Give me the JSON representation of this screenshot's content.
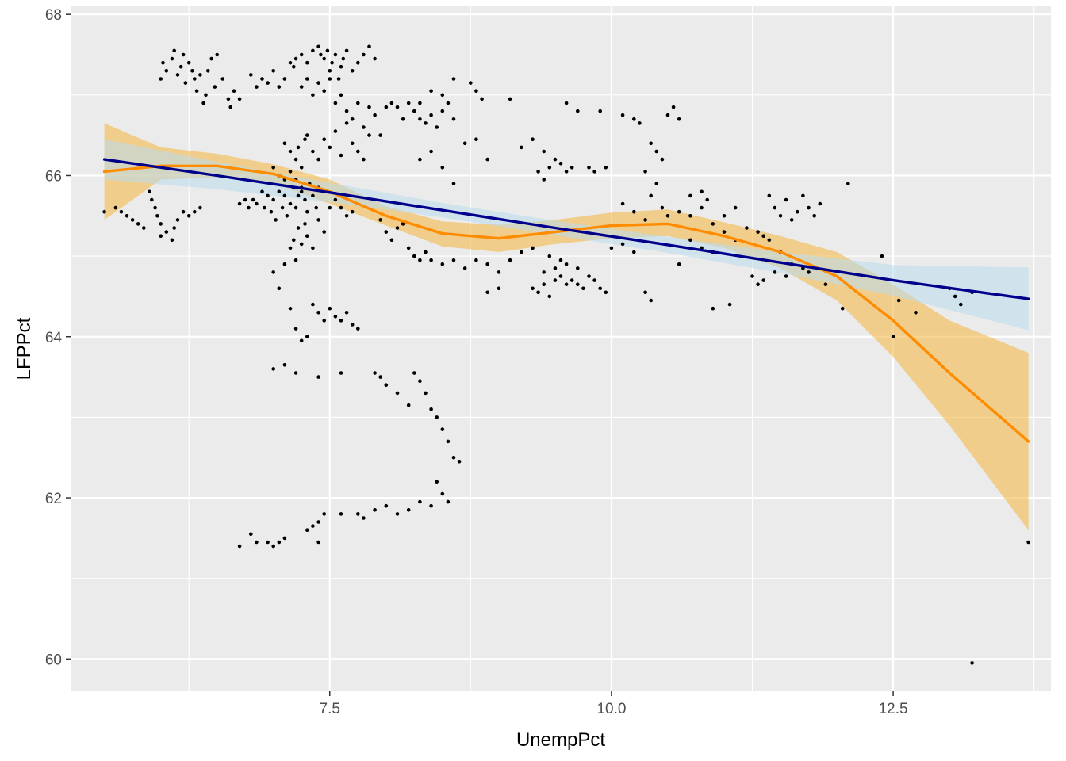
{
  "chart_data": {
    "type": "scatter",
    "title": "",
    "xlabel": "UnempPct",
    "ylabel": "LFPPct",
    "xlim": [
      5.2,
      13.9
    ],
    "ylim": [
      59.6,
      68.1
    ],
    "x_ticks": [
      7.5,
      10.0,
      12.5
    ],
    "x_tick_labels": [
      "7.5",
      "10.0",
      "12.5"
    ],
    "y_ticks": [
      60,
      62,
      64,
      66,
      68
    ],
    "y_tick_labels": [
      "60",
      "62",
      "64",
      "66",
      "68"
    ],
    "grid": true,
    "legend": "none",
    "colors": {
      "panel": "#ebebeb",
      "grid": "#ffffff",
      "points": "#000000",
      "loess_line": "#ff8c00",
      "loess_band": "#f4b94a",
      "linear_line": "#00008b",
      "linear_band": "#b9ddef"
    },
    "points": [
      [
        5.5,
        65.55
      ],
      [
        5.6,
        65.6
      ],
      [
        5.65,
        65.55
      ],
      [
        5.7,
        65.5
      ],
      [
        5.75,
        65.45
      ],
      [
        5.8,
        65.4
      ],
      [
        5.85,
        65.35
      ],
      [
        5.9,
        65.8
      ],
      [
        5.92,
        65.7
      ],
      [
        5.95,
        65.6
      ],
      [
        5.97,
        65.5
      ],
      [
        6.0,
        65.4
      ],
      [
        6.0,
        65.25
      ],
      [
        6.05,
        65.3
      ],
      [
        6.1,
        65.2
      ],
      [
        6.12,
        65.35
      ],
      [
        6.15,
        65.45
      ],
      [
        6.2,
        65.55
      ],
      [
        6.25,
        65.5
      ],
      [
        6.3,
        65.55
      ],
      [
        6.35,
        65.6
      ],
      [
        6.0,
        67.2
      ],
      [
        6.02,
        67.4
      ],
      [
        6.05,
        67.3
      ],
      [
        6.1,
        67.45
      ],
      [
        6.12,
        67.55
      ],
      [
        6.15,
        67.25
      ],
      [
        6.18,
        67.35
      ],
      [
        6.2,
        67.5
      ],
      [
        6.22,
        67.15
      ],
      [
        6.25,
        67.4
      ],
      [
        6.28,
        67.3
      ],
      [
        6.3,
        67.2
      ],
      [
        6.32,
        67.05
      ],
      [
        6.35,
        67.25
      ],
      [
        6.38,
        66.9
      ],
      [
        6.4,
        67.0
      ],
      [
        6.42,
        67.3
      ],
      [
        6.45,
        67.45
      ],
      [
        6.48,
        67.1
      ],
      [
        6.5,
        67.5
      ],
      [
        6.55,
        67.2
      ],
      [
        6.6,
        66.95
      ],
      [
        6.62,
        66.85
      ],
      [
        6.65,
        67.05
      ],
      [
        6.7,
        66.95
      ],
      [
        6.8,
        67.25
      ],
      [
        6.85,
        67.1
      ],
      [
        6.7,
        65.65
      ],
      [
        6.75,
        65.7
      ],
      [
        6.78,
        65.6
      ],
      [
        6.82,
        65.7
      ],
      [
        6.85,
        65.65
      ],
      [
        6.9,
        65.8
      ],
      [
        6.92,
        65.6
      ],
      [
        6.95,
        65.75
      ],
      [
        6.98,
        65.55
      ],
      [
        7.0,
        65.7
      ],
      [
        7.02,
        65.45
      ],
      [
        7.05,
        65.8
      ],
      [
        7.08,
        65.6
      ],
      [
        7.1,
        65.75
      ],
      [
        7.12,
        65.5
      ],
      [
        7.15,
        65.65
      ],
      [
        7.18,
        65.85
      ],
      [
        7.2,
        65.6
      ],
      [
        7.22,
        65.75
      ],
      [
        7.25,
        65.8
      ],
      [
        7.28,
        65.7
      ],
      [
        7.3,
        65.55
      ],
      [
        7.32,
        65.9
      ],
      [
        7.35,
        65.75
      ],
      [
        7.38,
        65.6
      ],
      [
        7.4,
        65.85
      ],
      [
        6.9,
        67.2
      ],
      [
        6.95,
        67.15
      ],
      [
        7.0,
        67.3
      ],
      [
        7.05,
        67.1
      ],
      [
        7.1,
        67.2
      ],
      [
        7.15,
        67.4
      ],
      [
        7.18,
        67.35
      ],
      [
        7.2,
        67.45
      ],
      [
        7.25,
        67.5
      ],
      [
        7.3,
        67.4
      ],
      [
        7.35,
        67.55
      ],
      [
        7.4,
        67.6
      ],
      [
        7.42,
        67.5
      ],
      [
        7.45,
        67.45
      ],
      [
        7.48,
        67.55
      ],
      [
        7.5,
        67.3
      ],
      [
        7.52,
        67.4
      ],
      [
        7.55,
        67.5
      ],
      [
        7.58,
        67.2
      ],
      [
        7.6,
        67.35
      ],
      [
        7.62,
        67.45
      ],
      [
        7.65,
        67.55
      ],
      [
        7.7,
        67.3
      ],
      [
        7.75,
        67.4
      ],
      [
        7.8,
        67.5
      ],
      [
        7.85,
        67.6
      ],
      [
        7.9,
        67.45
      ],
      [
        7.25,
        67.1
      ],
      [
        7.3,
        67.2
      ],
      [
        7.35,
        67.0
      ],
      [
        7.4,
        67.15
      ],
      [
        7.45,
        67.05
      ],
      [
        7.5,
        67.2
      ],
      [
        7.55,
        66.9
      ],
      [
        7.6,
        67.0
      ],
      [
        7.65,
        66.8
      ],
      [
        7.7,
        66.7
      ],
      [
        7.75,
        66.9
      ],
      [
        7.8,
        66.6
      ],
      [
        7.85,
        66.85
      ],
      [
        7.9,
        66.75
      ],
      [
        7.95,
        66.5
      ],
      [
        8.0,
        66.85
      ],
      [
        8.05,
        66.9
      ],
      [
        8.1,
        66.85
      ],
      [
        8.15,
        66.7
      ],
      [
        8.2,
        66.9
      ],
      [
        8.25,
        66.8
      ],
      [
        8.3,
        66.7
      ],
      [
        8.35,
        66.65
      ],
      [
        8.4,
        66.75
      ],
      [
        8.45,
        66.6
      ],
      [
        8.5,
        66.8
      ],
      [
        8.55,
        66.9
      ],
      [
        8.6,
        66.7
      ],
      [
        7.1,
        66.4
      ],
      [
        7.15,
        66.3
      ],
      [
        7.2,
        66.2
      ],
      [
        7.22,
        66.35
      ],
      [
        7.25,
        66.1
      ],
      [
        7.28,
        66.45
      ],
      [
        7.3,
        66.5
      ],
      [
        7.35,
        66.3
      ],
      [
        7.4,
        66.2
      ],
      [
        7.45,
        66.45
      ],
      [
        7.5,
        66.35
      ],
      [
        7.55,
        66.55
      ],
      [
        7.6,
        66.25
      ],
      [
        7.65,
        66.65
      ],
      [
        7.7,
        66.4
      ],
      [
        7.75,
        66.3
      ],
      [
        7.8,
        66.2
      ],
      [
        7.85,
        66.5
      ],
      [
        7.0,
        66.1
      ],
      [
        7.05,
        66.0
      ],
      [
        7.1,
        65.95
      ],
      [
        7.15,
        66.05
      ],
      [
        7.2,
        65.95
      ],
      [
        7.25,
        65.85
      ],
      [
        7.0,
        64.8
      ],
      [
        7.05,
        64.6
      ],
      [
        7.1,
        64.9
      ],
      [
        7.15,
        65.1
      ],
      [
        7.18,
        65.2
      ],
      [
        7.2,
        64.95
      ],
      [
        7.22,
        65.35
      ],
      [
        7.25,
        65.15
      ],
      [
        7.28,
        65.4
      ],
      [
        7.3,
        65.25
      ],
      [
        7.35,
        65.1
      ],
      [
        7.4,
        65.45
      ],
      [
        7.45,
        65.3
      ],
      [
        7.5,
        65.6
      ],
      [
        7.55,
        65.7
      ],
      [
        7.6,
        65.6
      ],
      [
        7.65,
        65.5
      ],
      [
        7.7,
        65.55
      ],
      [
        7.15,
        64.35
      ],
      [
        7.2,
        64.1
      ],
      [
        7.25,
        63.95
      ],
      [
        7.3,
        64.0
      ],
      [
        7.35,
        64.4
      ],
      [
        7.4,
        64.3
      ],
      [
        7.45,
        64.2
      ],
      [
        7.5,
        64.35
      ],
      [
        7.55,
        64.25
      ],
      [
        7.6,
        64.2
      ],
      [
        7.65,
        64.3
      ],
      [
        7.7,
        64.15
      ],
      [
        7.75,
        64.1
      ],
      [
        7.0,
        63.6
      ],
      [
        7.1,
        63.65
      ],
      [
        7.2,
        63.55
      ],
      [
        7.4,
        63.5
      ],
      [
        7.6,
        63.55
      ],
      [
        7.9,
        63.55
      ],
      [
        7.95,
        63.5
      ],
      [
        8.0,
        63.4
      ],
      [
        8.1,
        63.3
      ],
      [
        8.2,
        63.15
      ],
      [
        8.25,
        63.55
      ],
      [
        8.3,
        63.45
      ],
      [
        8.35,
        63.3
      ],
      [
        8.4,
        63.1
      ],
      [
        8.45,
        63.0
      ],
      [
        8.5,
        62.85
      ],
      [
        8.55,
        62.7
      ],
      [
        8.6,
        62.5
      ],
      [
        8.65,
        62.45
      ],
      [
        8.45,
        62.2
      ],
      [
        8.5,
        62.05
      ],
      [
        8.55,
        61.95
      ],
      [
        8.4,
        61.9
      ],
      [
        8.3,
        61.95
      ],
      [
        8.2,
        61.85
      ],
      [
        8.1,
        61.8
      ],
      [
        8.0,
        61.9
      ],
      [
        7.9,
        61.85
      ],
      [
        7.8,
        61.75
      ],
      [
        7.75,
        61.8
      ],
      [
        7.6,
        61.8
      ],
      [
        7.45,
        61.8
      ],
      [
        7.4,
        61.7
      ],
      [
        7.35,
        61.65
      ],
      [
        7.3,
        61.6
      ],
      [
        7.1,
        61.5
      ],
      [
        7.05,
        61.45
      ],
      [
        7.0,
        61.4
      ],
      [
        6.95,
        61.45
      ],
      [
        6.85,
        61.45
      ],
      [
        6.8,
        61.55
      ],
      [
        6.7,
        61.4
      ],
      [
        7.4,
        61.45
      ],
      [
        7.95,
        65.45
      ],
      [
        8.0,
        65.3
      ],
      [
        8.05,
        65.2
      ],
      [
        8.1,
        65.35
      ],
      [
        8.15,
        65.4
      ],
      [
        8.2,
        65.1
      ],
      [
        8.25,
        65.0
      ],
      [
        8.3,
        64.95
      ],
      [
        8.35,
        65.05
      ],
      [
        8.4,
        64.95
      ],
      [
        8.5,
        64.9
      ],
      [
        8.6,
        64.95
      ],
      [
        8.7,
        64.85
      ],
      [
        8.8,
        64.95
      ],
      [
        8.9,
        64.9
      ],
      [
        9.0,
        64.8
      ],
      [
        8.3,
        66.2
      ],
      [
        8.4,
        66.3
      ],
      [
        8.5,
        66.1
      ],
      [
        8.6,
        65.9
      ],
      [
        8.7,
        66.4
      ],
      [
        8.8,
        66.45
      ],
      [
        8.9,
        66.2
      ],
      [
        8.75,
        67.15
      ],
      [
        8.8,
        67.05
      ],
      [
        8.85,
        66.95
      ],
      [
        8.6,
        67.2
      ],
      [
        8.5,
        67.0
      ],
      [
        8.4,
        67.05
      ],
      [
        8.3,
        66.9
      ],
      [
        9.1,
        66.95
      ],
      [
        9.2,
        66.35
      ],
      [
        9.3,
        66.45
      ],
      [
        9.4,
        66.3
      ],
      [
        9.3,
        64.6
      ],
      [
        9.35,
        64.55
      ],
      [
        9.4,
        64.65
      ],
      [
        9.45,
        64.5
      ],
      [
        9.5,
        64.7
      ],
      [
        9.55,
        64.75
      ],
      [
        9.6,
        64.65
      ],
      [
        9.65,
        64.7
      ],
      [
        9.7,
        64.85
      ],
      [
        9.75,
        64.6
      ],
      [
        9.8,
        64.75
      ],
      [
        9.85,
        64.7
      ],
      [
        9.9,
        64.6
      ],
      [
        9.95,
        64.55
      ],
      [
        9.4,
        64.8
      ],
      [
        9.5,
        64.85
      ],
      [
        9.6,
        64.9
      ],
      [
        9.7,
        64.65
      ],
      [
        9.55,
        64.95
      ],
      [
        9.45,
        65.0
      ],
      [
        9.3,
        65.1
      ],
      [
        9.2,
        65.05
      ],
      [
        9.1,
        64.95
      ],
      [
        9.0,
        64.6
      ],
      [
        8.9,
        64.55
      ],
      [
        9.35,
        66.05
      ],
      [
        9.4,
        65.95
      ],
      [
        9.45,
        66.1
      ],
      [
        9.5,
        66.2
      ],
      [
        9.55,
        66.15
      ],
      [
        9.6,
        66.05
      ],
      [
        9.65,
        66.1
      ],
      [
        9.8,
        66.1
      ],
      [
        9.85,
        66.05
      ],
      [
        9.9,
        66.8
      ],
      [
        9.95,
        66.1
      ],
      [
        9.7,
        66.8
      ],
      [
        9.6,
        66.9
      ],
      [
        10.1,
        66.75
      ],
      [
        10.2,
        66.7
      ],
      [
        10.25,
        66.65
      ],
      [
        10.3,
        66.05
      ],
      [
        10.35,
        66.4
      ],
      [
        10.4,
        66.3
      ],
      [
        10.45,
        66.2
      ],
      [
        10.5,
        66.75
      ],
      [
        10.55,
        66.85
      ],
      [
        10.6,
        66.7
      ],
      [
        10.1,
        65.65
      ],
      [
        10.2,
        65.55
      ],
      [
        10.3,
        65.45
      ],
      [
        10.35,
        65.75
      ],
      [
        10.4,
        65.9
      ],
      [
        10.45,
        65.6
      ],
      [
        10.5,
        65.5
      ],
      [
        10.6,
        65.55
      ],
      [
        10.7,
        65.5
      ],
      [
        10.8,
        65.6
      ],
      [
        10.9,
        65.4
      ],
      [
        11.0,
        65.5
      ],
      [
        11.1,
        65.6
      ],
      [
        10.0,
        65.1
      ],
      [
        10.1,
        65.15
      ],
      [
        10.2,
        65.05
      ],
      [
        10.3,
        64.55
      ],
      [
        10.35,
        64.45
      ],
      [
        10.6,
        64.9
      ],
      [
        10.7,
        65.2
      ],
      [
        10.8,
        65.1
      ],
      [
        10.9,
        65.05
      ],
      [
        11.0,
        65.3
      ],
      [
        11.1,
        65.2
      ],
      [
        11.2,
        65.35
      ],
      [
        11.3,
        65.3
      ],
      [
        11.35,
        65.25
      ],
      [
        11.4,
        65.2
      ],
      [
        11.5,
        65.05
      ],
      [
        11.6,
        64.9
      ],
      [
        11.7,
        64.85
      ],
      [
        10.7,
        65.75
      ],
      [
        10.8,
        65.8
      ],
      [
        10.85,
        65.7
      ],
      [
        10.9,
        64.35
      ],
      [
        11.05,
        64.4
      ],
      [
        11.25,
        64.75
      ],
      [
        11.3,
        64.65
      ],
      [
        11.35,
        64.7
      ],
      [
        11.4,
        65.75
      ],
      [
        11.45,
        65.6
      ],
      [
        11.5,
        65.5
      ],
      [
        11.55,
        65.7
      ],
      [
        11.6,
        65.45
      ],
      [
        11.65,
        65.55
      ],
      [
        11.7,
        65.75
      ],
      [
        11.75,
        65.6
      ],
      [
        11.8,
        65.5
      ],
      [
        11.85,
        65.65
      ],
      [
        11.45,
        64.8
      ],
      [
        11.55,
        64.75
      ],
      [
        11.75,
        64.8
      ],
      [
        11.9,
        64.65
      ],
      [
        12.05,
        64.35
      ],
      [
        12.1,
        65.9
      ],
      [
        12.4,
        65.0
      ],
      [
        12.5,
        64.0
      ],
      [
        12.55,
        64.45
      ],
      [
        12.7,
        64.3
      ],
      [
        13.05,
        64.5
      ],
      [
        13.0,
        64.6
      ],
      [
        13.1,
        64.4
      ],
      [
        13.2,
        64.55
      ],
      [
        13.7,
        61.45
      ],
      [
        13.2,
        59.95
      ]
    ],
    "loess": {
      "x": [
        5.5,
        6.0,
        6.5,
        7.0,
        7.5,
        8.0,
        8.5,
        9.0,
        9.5,
        10.0,
        10.5,
        11.0,
        11.5,
        12.0,
        12.5,
        13.0,
        13.7
      ],
      "y": [
        66.05,
        66.12,
        66.12,
        66.02,
        65.8,
        65.5,
        65.28,
        65.22,
        65.3,
        65.38,
        65.4,
        65.25,
        65.05,
        64.75,
        64.2,
        63.55,
        62.7
      ],
      "ymin": [
        65.45,
        65.95,
        65.98,
        65.9,
        65.65,
        65.38,
        65.12,
        65.05,
        65.15,
        65.22,
        65.25,
        65.1,
        64.85,
        64.45,
        63.75,
        62.9,
        61.6
      ],
      "ymax": [
        66.65,
        66.35,
        66.27,
        66.14,
        65.95,
        65.62,
        65.43,
        65.39,
        65.45,
        65.54,
        65.58,
        65.42,
        65.25,
        65.05,
        64.65,
        64.2,
        63.8
      ]
    },
    "linear": {
      "x": [
        5.5,
        6.5,
        7.5,
        8.5,
        9.5,
        10.5,
        11.5,
        12.5,
        13.7
      ],
      "y": [
        66.2,
        66.0,
        65.79,
        65.57,
        65.35,
        65.14,
        64.92,
        64.7,
        64.47
      ],
      "ymin": [
        65.95,
        65.83,
        65.67,
        65.48,
        65.26,
        65.04,
        64.79,
        64.51,
        64.08
      ],
      "ymax": [
        66.45,
        66.17,
        65.91,
        65.66,
        65.44,
        65.24,
        65.05,
        64.89,
        64.86
      ]
    }
  }
}
